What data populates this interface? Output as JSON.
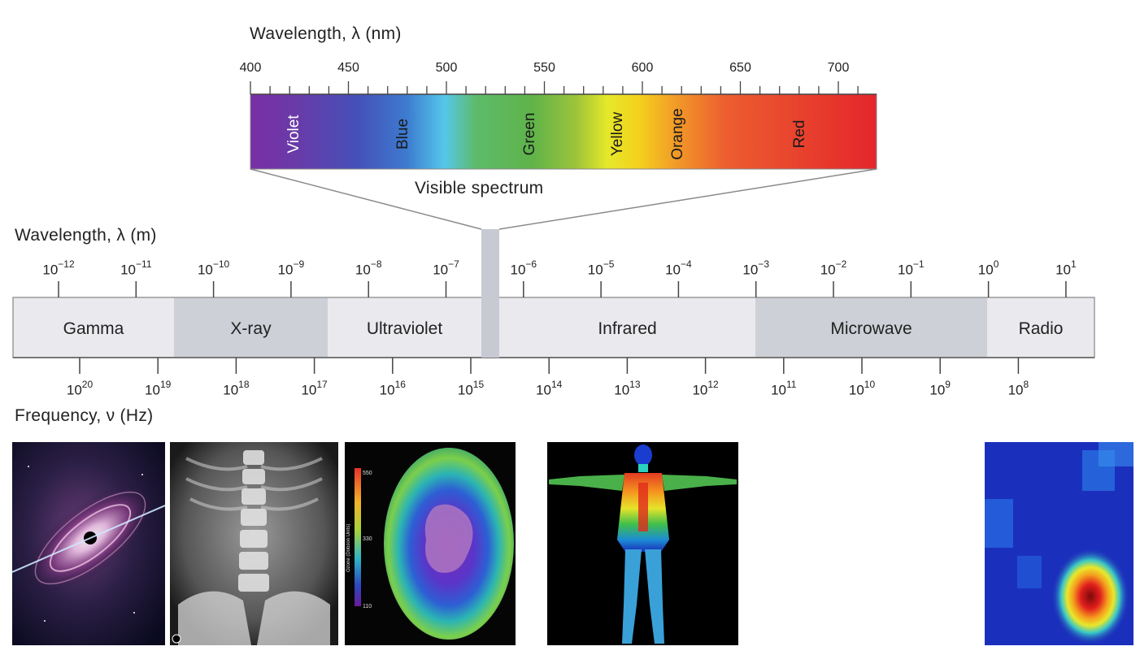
{
  "visible": {
    "title": "Wavelength, λ (nm)",
    "ticks": [
      "400",
      "450",
      "500",
      "550",
      "600",
      "650",
      "700"
    ],
    "colors": [
      {
        "name": "Violet",
        "text_color": "#ffffff"
      },
      {
        "name": "Blue",
        "text_color": "#1a1a1a"
      },
      {
        "name": "Green",
        "text_color": "#1a1a1a"
      },
      {
        "name": "Yellow",
        "text_color": "#1a1a1a"
      },
      {
        "name": "Orange",
        "text_color": "#1a1a1a"
      },
      {
        "name": "Red",
        "text_color": "#1a1a1a"
      }
    ],
    "caption": "Visible spectrum"
  },
  "wavelength_m": {
    "title": "Wavelength, λ (m)",
    "ticks": [
      {
        "base": "10",
        "exp": "−12"
      },
      {
        "base": "10",
        "exp": "−11"
      },
      {
        "base": "10",
        "exp": "−10"
      },
      {
        "base": "10",
        "exp": "−9"
      },
      {
        "base": "10",
        "exp": "−8"
      },
      {
        "base": "10",
        "exp": "−7"
      },
      {
        "base": "10",
        "exp": "−6"
      },
      {
        "base": "10",
        "exp": "−5"
      },
      {
        "base": "10",
        "exp": "−4"
      },
      {
        "base": "10",
        "exp": "−3"
      },
      {
        "base": "10",
        "exp": "−2"
      },
      {
        "base": "10",
        "exp": "−1"
      },
      {
        "base": "10",
        "exp": "0"
      },
      {
        "base": "10",
        "exp": "1"
      }
    ]
  },
  "bands": [
    {
      "name": "Gamma",
      "shade": "#eaeaee"
    },
    {
      "name": "X-ray",
      "shade": "#cdd0d7"
    },
    {
      "name": "Ultraviolet",
      "shade": "#eaeaee"
    },
    {
      "name": "Infrared",
      "shade": "#eaeaee"
    },
    {
      "name": "Microwave",
      "shade": "#cdd0d7"
    },
    {
      "name": "Radio",
      "shade": "#eaeaee"
    }
  ],
  "frequency": {
    "title": "Frequency, ν (Hz)",
    "ticks": [
      {
        "base": "10",
        "exp": "20"
      },
      {
        "base": "10",
        "exp": "19"
      },
      {
        "base": "10",
        "exp": "18"
      },
      {
        "base": "10",
        "exp": "17"
      },
      {
        "base": "10",
        "exp": "16"
      },
      {
        "base": "10",
        "exp": "15"
      },
      {
        "base": "10",
        "exp": "14"
      },
      {
        "base": "10",
        "exp": "13"
      },
      {
        "base": "10",
        "exp": "12"
      },
      {
        "base": "10",
        "exp": "11"
      },
      {
        "base": "10",
        "exp": "10"
      },
      {
        "base": "10",
        "exp": "9"
      },
      {
        "base": "10",
        "exp": "8"
      }
    ]
  },
  "images": [
    {
      "name": "gamma-black-hole-image"
    },
    {
      "name": "xray-spine-image"
    },
    {
      "name": "ozone-map-image",
      "scale_title": "Ozone (Dobson Units)",
      "scale_ticks": [
        "550",
        "330",
        "110"
      ]
    },
    {
      "name": "infrared-body-image"
    },
    {
      "name": "radio-heatmap-image"
    }
  ]
}
